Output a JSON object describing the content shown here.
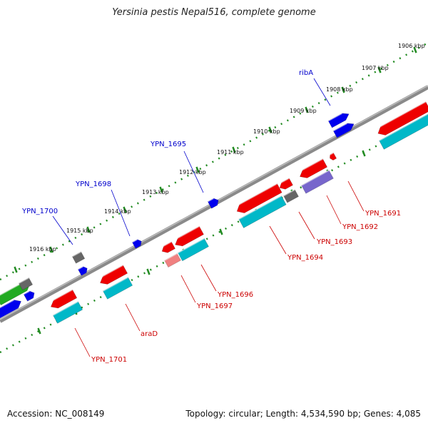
{
  "title": "Yersinia pestis Nepal516, complete genome",
  "footer": {
    "accession": "Accession: NC_008149",
    "topology": "Topology: circular; Length: 4,534,590 bp; Genes: 4,085"
  },
  "ruler_ticks": [
    "1906 kbp",
    "1907 kbp",
    "1908 kbp",
    "1909 kbp",
    "1910 kbp",
    "1911 kbp",
    "1912 kbp",
    "1913 kbp",
    "1914 kbp",
    "1915 kbp",
    "1916 kbp"
  ],
  "gene_labels_forward": [
    "ribA",
    "YPN_1695",
    "YPN_1698",
    "YPN_1700"
  ],
  "gene_labels_reverse": [
    "YPN_1691",
    "YPN_1692",
    "YPN_1693",
    "YPN_1694",
    "YPN_1696",
    "YPN_1697",
    "araD",
    "YPN_1701"
  ],
  "colors": {
    "backbone": "#808080",
    "forward_gene": "#0000ee",
    "reverse_gene": "#ee0000",
    "cds_reverse": "#00b8c8",
    "cds_forward": "#22aa22",
    "pseudo": "#666666",
    "tick": "#228b22",
    "label_forward": "#0000cc",
    "label_reverse": "#cc0000"
  }
}
